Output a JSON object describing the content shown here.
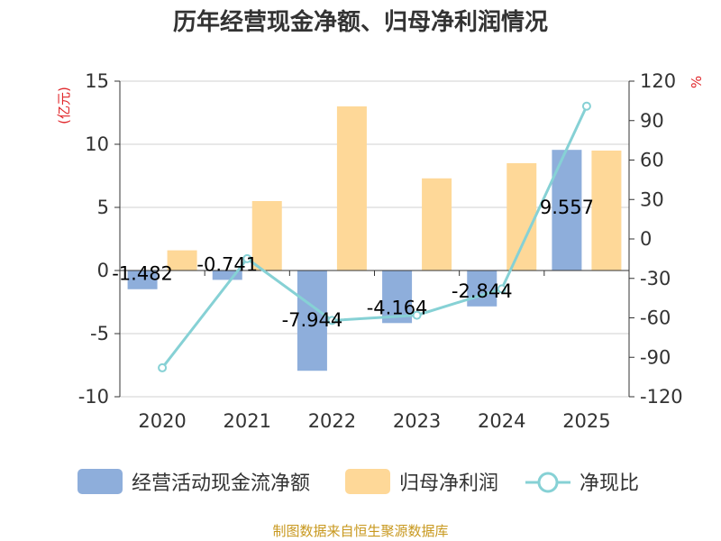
{
  "chart_data": {
    "type": "bar",
    "title": "历年经营现金净额、归母净利润情况",
    "categories": [
      "2020",
      "2021",
      "2022",
      "2023",
      "2024",
      "2025"
    ],
    "left_axis": {
      "unit": "(亿元)",
      "ylim": [
        -10,
        15
      ],
      "ticks": [
        15,
        10,
        5,
        0,
        -5,
        -10
      ]
    },
    "right_axis": {
      "unit": "%",
      "ylim": [
        -120,
        120
      ],
      "ticks": [
        120,
        90,
        60,
        30,
        0,
        -30,
        -60,
        -90,
        -120
      ]
    },
    "series": [
      {
        "name": "经营活动现金流净额",
        "type": "bar",
        "axis": "left",
        "color": "#8eaedb",
        "values": [
          -1.482,
          -0.741,
          -7.944,
          -4.164,
          -2.844,
          9.557
        ]
      },
      {
        "name": "归母净利润",
        "type": "bar",
        "axis": "left",
        "color": "#fed898",
        "values": [
          1.6,
          5.5,
          13.0,
          7.3,
          8.5,
          9.5
        ]
      },
      {
        "name": "净现比",
        "type": "line",
        "axis": "right",
        "color": "#86d1d5",
        "values": [
          -98,
          -15,
          -62,
          -58,
          -38,
          101
        ]
      }
    ],
    "data_labels": [
      "-1.482",
      "-0.741",
      "-7.944",
      "-4.164",
      "-2.844",
      "9.557"
    ],
    "legend": [
      "经营活动现金流净额",
      "归母净利润",
      "净现比"
    ],
    "source": "制图数据来自恒生聚源数据库"
  }
}
